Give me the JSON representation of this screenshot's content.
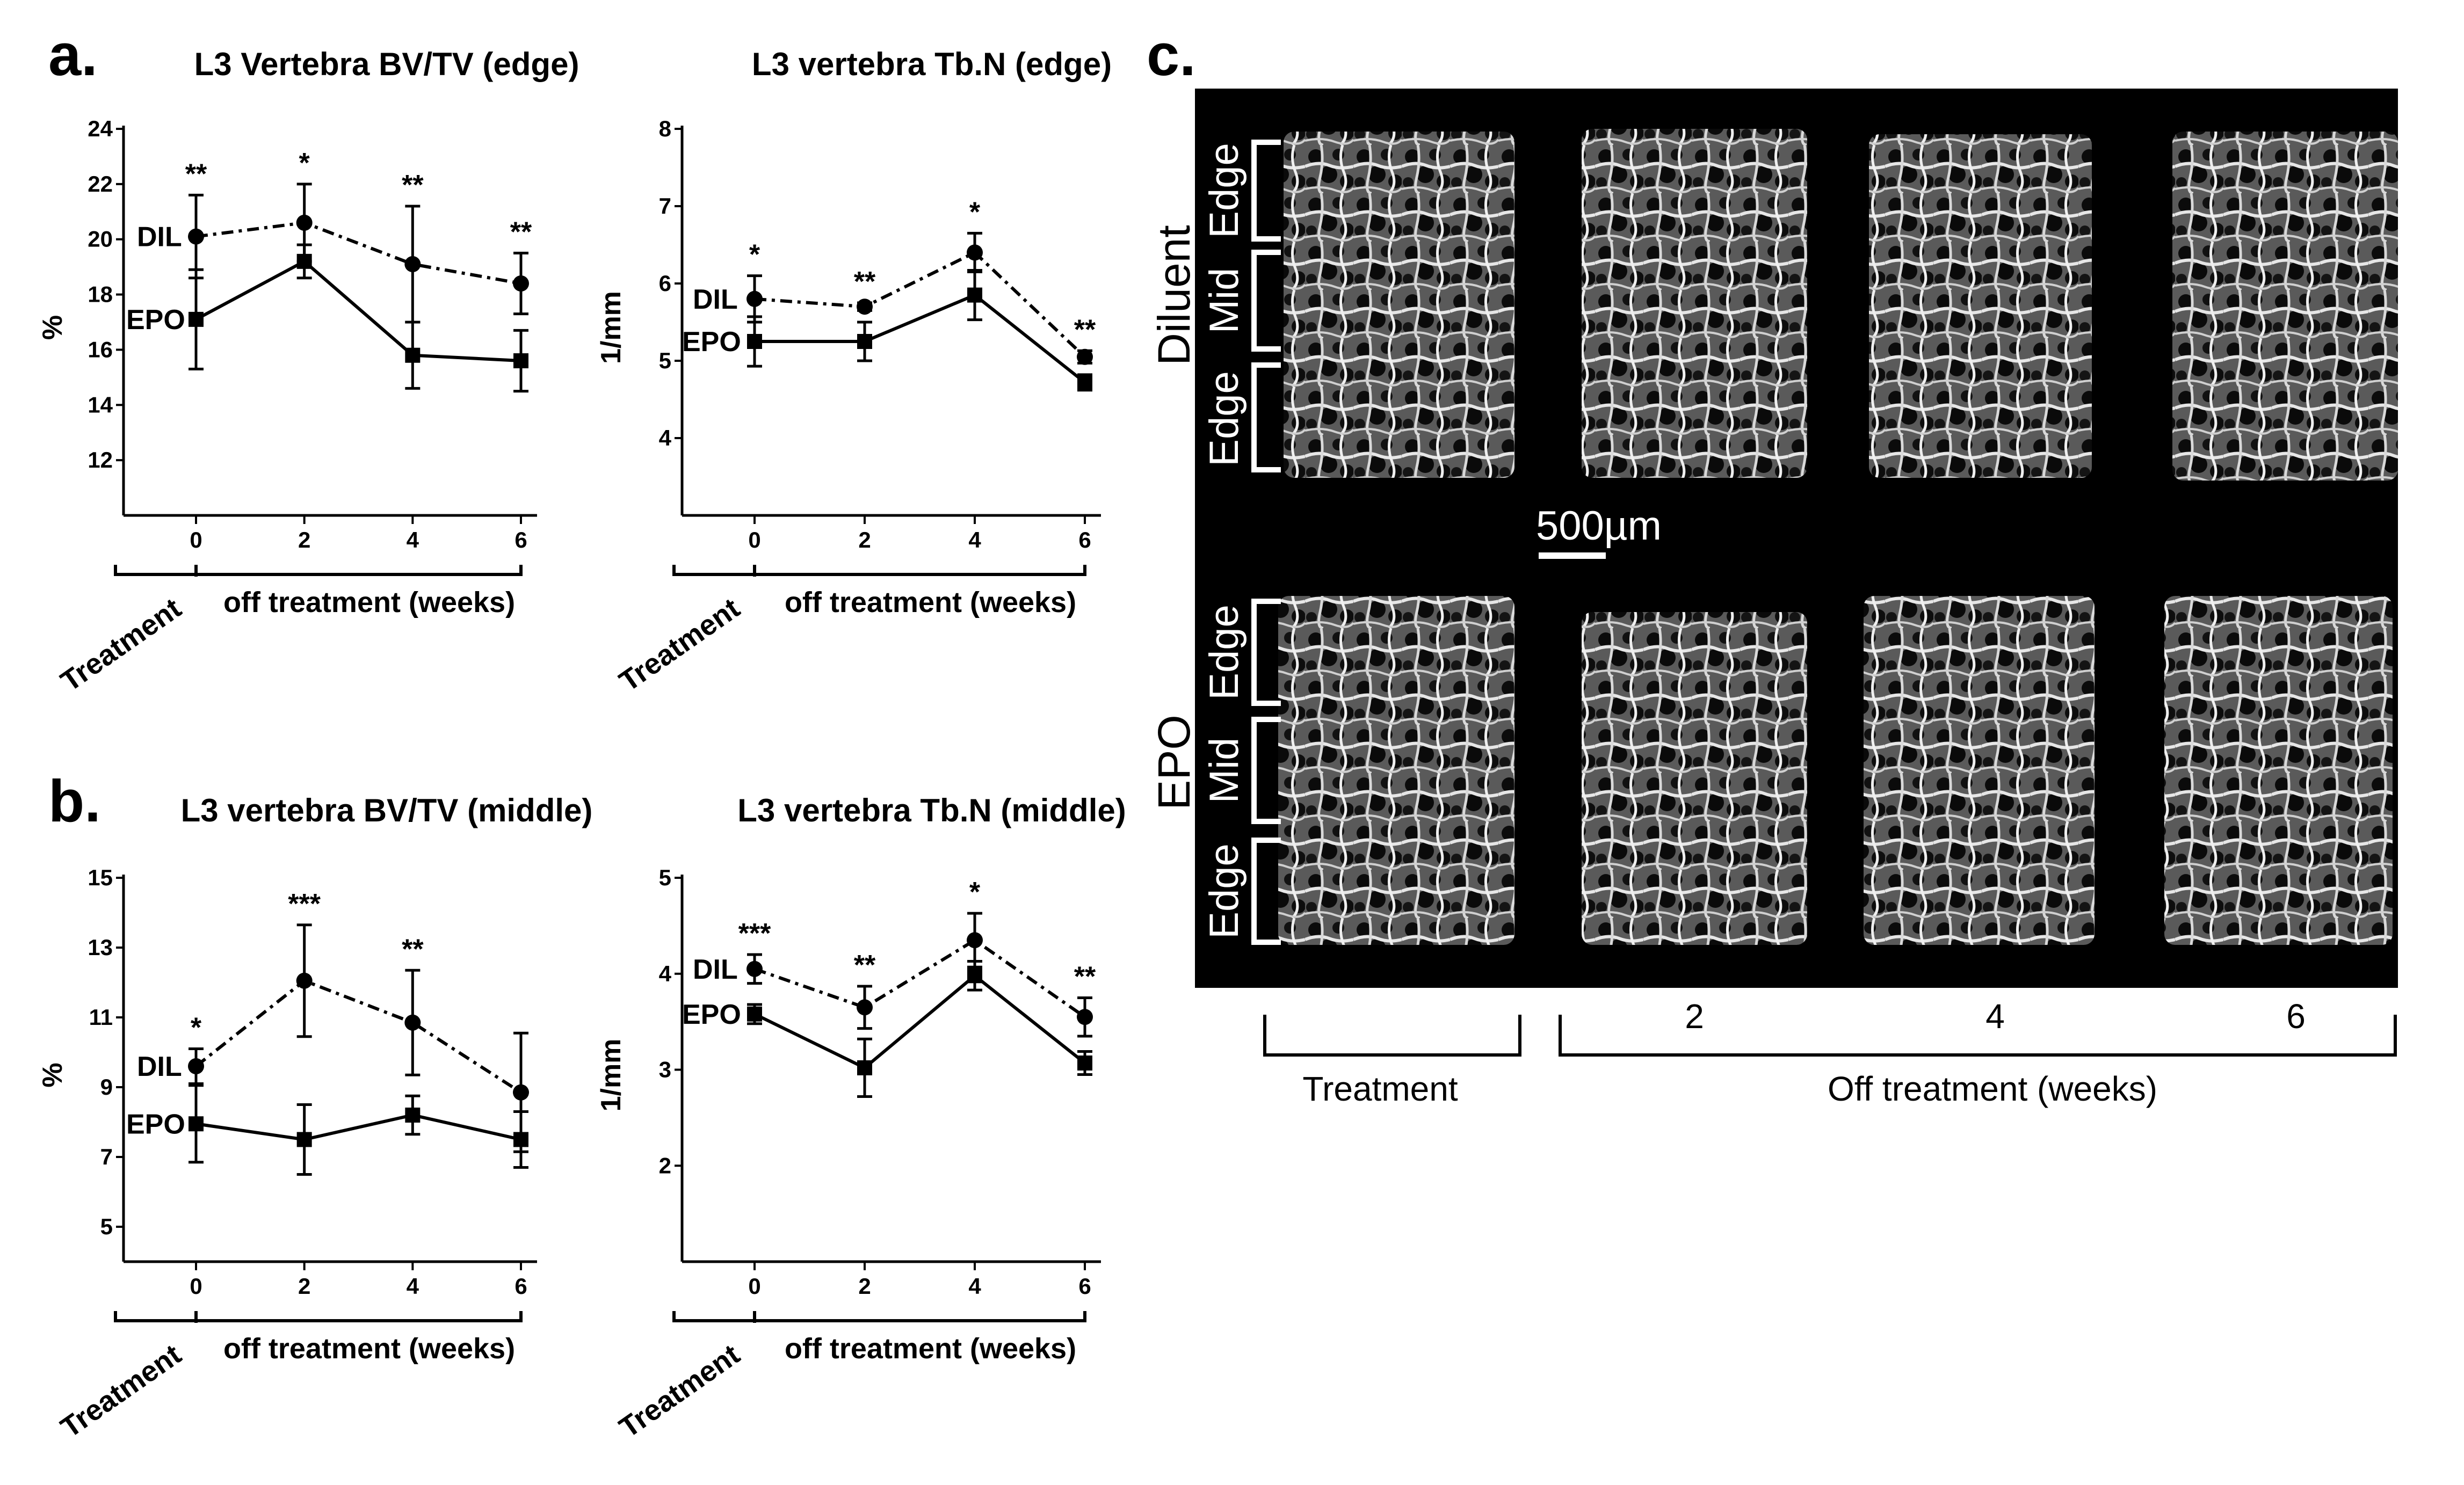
{
  "panels": {
    "a_label": "a.",
    "b_label": "b.",
    "c_label": "c."
  },
  "chart_data": [
    {
      "id": "a-left",
      "type": "line",
      "title": "L3 Vertebra BV/TV (edge)",
      "ylabel": "%",
      "xlabel": "off treatment (weeks)",
      "treatment_label": "Treatment",
      "ylim": [
        10,
        24
      ],
      "yticks": [
        12,
        14,
        16,
        18,
        20,
        22,
        24
      ],
      "x": [
        0,
        2,
        4,
        6
      ],
      "series": [
        {
          "name": "DIL",
          "style": "dashdot",
          "marker": "circle",
          "values": [
            20.1,
            20.6,
            19.1,
            18.4
          ],
          "errors": [
            1.5,
            1.4,
            2.1,
            1.1
          ]
        },
        {
          "name": "EPO",
          "style": "solid",
          "marker": "square",
          "values": [
            17.1,
            19.2,
            15.8,
            15.6
          ],
          "errors": [
            1.8,
            0.6,
            1.2,
            1.1
          ]
        }
      ],
      "significance": [
        "**",
        "*",
        "**",
        "**"
      ]
    },
    {
      "id": "a-right",
      "type": "line",
      "title": "L3 vertebra Tb.N (edge)",
      "ylabel": "1/mm",
      "xlabel": "off treatment (weeks)",
      "treatment_label": "Treatment",
      "ylim": [
        3,
        8
      ],
      "yticks": [
        4,
        5,
        6,
        7,
        8
      ],
      "x": [
        0,
        2,
        4,
        6
      ],
      "series": [
        {
          "name": "DIL",
          "style": "dashdot",
          "marker": "circle",
          "values": [
            5.8,
            5.7,
            6.4,
            5.05
          ],
          "errors": [
            0.3,
            0.05,
            0.25,
            0.08
          ]
        },
        {
          "name": "EPO",
          "style": "solid",
          "marker": "square",
          "values": [
            5.25,
            5.25,
            5.85,
            4.72
          ],
          "errors": [
            0.32,
            0.25,
            0.32,
            0.1
          ]
        }
      ],
      "significance": [
        "*",
        "**",
        "*",
        "**"
      ]
    },
    {
      "id": "b-left",
      "type": "line",
      "title": "L3 vertebra BV/TV (middle)",
      "ylabel": "%",
      "xlabel": "off treatment (weeks)",
      "treatment_label": "Treatment",
      "ylim": [
        4,
        15
      ],
      "yticks": [
        5,
        7,
        9,
        11,
        13,
        15
      ],
      "x": [
        0,
        2,
        4,
        6
      ],
      "series": [
        {
          "name": "DIL",
          "style": "dashdot",
          "marker": "circle",
          "values": [
            9.6,
            12.05,
            10.85,
            8.85
          ],
          "errors": [
            0.5,
            1.6,
            1.5,
            1.7
          ]
        },
        {
          "name": "EPO",
          "style": "solid",
          "marker": "square",
          "values": [
            7.95,
            7.5,
            8.2,
            7.5
          ],
          "errors": [
            1.1,
            1.0,
            0.55,
            0.8
          ]
        }
      ],
      "significance": [
        "*",
        "***",
        "**",
        ""
      ]
    },
    {
      "id": "b-right",
      "type": "line",
      "title": "L3 vertebra Tb.N (middle)",
      "ylabel": "1/mm",
      "xlabel": "off treatment (weeks)",
      "treatment_label": "Treatment",
      "ylim": [
        1,
        5
      ],
      "yticks": [
        2,
        3,
        4,
        5
      ],
      "x": [
        0,
        2,
        4,
        6
      ],
      "series": [
        {
          "name": "DIL",
          "style": "dashdot",
          "marker": "circle",
          "values": [
            4.05,
            3.65,
            4.35,
            3.55
          ],
          "errors": [
            0.15,
            0.22,
            0.28,
            0.2
          ]
        },
        {
          "name": "EPO",
          "style": "solid",
          "marker": "square",
          "values": [
            3.58,
            3.02,
            3.98,
            3.07
          ],
          "errors": [
            0.1,
            0.3,
            0.15,
            0.12
          ]
        }
      ],
      "significance": [
        "***",
        "**",
        "*",
        "**"
      ]
    }
  ],
  "micro_ct": {
    "group_top": "Diluent",
    "group_bottom": "EPO",
    "region_labels": [
      "Edge",
      "Mid",
      "Edge"
    ],
    "scale_bar": "500µm",
    "columns": [
      "",
      "2",
      "4",
      "6"
    ],
    "treatment_label": "Treatment",
    "off_label": "Off treatment (weeks)"
  },
  "colors": {
    "line": "#000000",
    "image_bg": "#000000",
    "bone": "#c9c9c9"
  }
}
